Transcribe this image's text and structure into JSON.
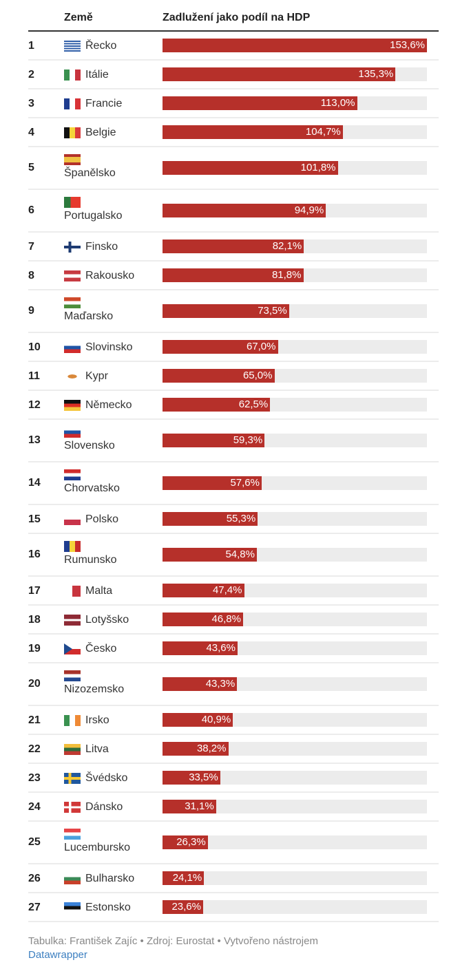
{
  "header": {
    "country_col": "Země",
    "debt_col": "Zadlužení jako podíl na HDP"
  },
  "chart_data": {
    "type": "bar",
    "orientation": "horizontal",
    "title": "Zadlužení jako podíl na HDP",
    "xlabel": "",
    "ylabel": "Země",
    "xlim": [
      0,
      153.6
    ],
    "bar_color": "#b6302a",
    "track_color": "#ececec",
    "categories": [
      "Řecko",
      "Itálie",
      "Francie",
      "Belgie",
      "Španělsko",
      "Portugalsko",
      "Finsko",
      "Rakousko",
      "Maďarsko",
      "Slovinsko",
      "Kypr",
      "Německo",
      "Slovensko",
      "Chorvatsko",
      "Polsko",
      "Rumunsko",
      "Malta",
      "Lotyšsko",
      "Česko",
      "Nizozemsko",
      "Irsko",
      "Litva",
      "Švédsko",
      "Dánsko",
      "Lucembursko",
      "Bulharsko",
      "Estonsko"
    ],
    "values": [
      153.6,
      135.3,
      113.0,
      104.7,
      101.8,
      94.9,
      82.1,
      81.8,
      73.5,
      67.0,
      65.0,
      62.5,
      59.3,
      57.6,
      55.3,
      54.8,
      47.4,
      46.8,
      43.6,
      43.3,
      40.9,
      38.2,
      33.5,
      31.1,
      26.3,
      24.1,
      23.6
    ]
  },
  "rows": [
    {
      "rank": "1",
      "country": "Řecko",
      "flag": "gr",
      "value": 153.6,
      "label": "153,6%",
      "wrap": false
    },
    {
      "rank": "2",
      "country": "Itálie",
      "flag": "it",
      "value": 135.3,
      "label": "135,3%",
      "wrap": false
    },
    {
      "rank": "3",
      "country": "Francie",
      "flag": "fr",
      "value": 113.0,
      "label": "113,0%",
      "wrap": false
    },
    {
      "rank": "4",
      "country": "Belgie",
      "flag": "be",
      "value": 104.7,
      "label": "104,7%",
      "wrap": false
    },
    {
      "rank": "5",
      "country": "Španělsko",
      "flag": "es",
      "value": 101.8,
      "label": "101,8%",
      "wrap": true
    },
    {
      "rank": "6",
      "country": "Portugalsko",
      "flag": "pt",
      "value": 94.9,
      "label": "94,9%",
      "wrap": true
    },
    {
      "rank": "7",
      "country": "Finsko",
      "flag": "fi",
      "value": 82.1,
      "label": "82,1%",
      "wrap": false
    },
    {
      "rank": "8",
      "country": "Rakousko",
      "flag": "at",
      "value": 81.8,
      "label": "81,8%",
      "wrap": false
    },
    {
      "rank": "9",
      "country": "Maďarsko",
      "flag": "hu",
      "value": 73.5,
      "label": "73,5%",
      "wrap": true
    },
    {
      "rank": "10",
      "country": "Slovinsko",
      "flag": "si",
      "value": 67.0,
      "label": "67,0%",
      "wrap": false
    },
    {
      "rank": "11",
      "country": "Kypr",
      "flag": "cy",
      "value": 65.0,
      "label": "65,0%",
      "wrap": false
    },
    {
      "rank": "12",
      "country": "Německo",
      "flag": "de",
      "value": 62.5,
      "label": "62,5%",
      "wrap": false
    },
    {
      "rank": "13",
      "country": "Slovensko",
      "flag": "sk",
      "value": 59.3,
      "label": "59,3%",
      "wrap": true
    },
    {
      "rank": "14",
      "country": "Chorvatsko",
      "flag": "hr",
      "value": 57.6,
      "label": "57,6%",
      "wrap": true
    },
    {
      "rank": "15",
      "country": "Polsko",
      "flag": "pl",
      "value": 55.3,
      "label": "55,3%",
      "wrap": false
    },
    {
      "rank": "16",
      "country": "Rumunsko",
      "flag": "ro",
      "value": 54.8,
      "label": "54,8%",
      "wrap": true
    },
    {
      "rank": "17",
      "country": "Malta",
      "flag": "mt",
      "value": 47.4,
      "label": "47,4%",
      "wrap": false
    },
    {
      "rank": "18",
      "country": "Lotyšsko",
      "flag": "lv",
      "value": 46.8,
      "label": "46,8%",
      "wrap": false
    },
    {
      "rank": "19",
      "country": "Česko",
      "flag": "cz",
      "value": 43.6,
      "label": "43,6%",
      "wrap": false
    },
    {
      "rank": "20",
      "country": "Nizozemsko",
      "flag": "nl",
      "value": 43.3,
      "label": "43,3%",
      "wrap": true
    },
    {
      "rank": "21",
      "country": "Irsko",
      "flag": "ie",
      "value": 40.9,
      "label": "40,9%",
      "wrap": false
    },
    {
      "rank": "22",
      "country": "Litva",
      "flag": "lt",
      "value": 38.2,
      "label": "38,2%",
      "wrap": false
    },
    {
      "rank": "23",
      "country": "Švédsko",
      "flag": "se",
      "value": 33.5,
      "label": "33,5%",
      "wrap": false
    },
    {
      "rank": "24",
      "country": "Dánsko",
      "flag": "dk",
      "value": 31.1,
      "label": "31,1%",
      "wrap": false
    },
    {
      "rank": "25",
      "country": "Lucembursko",
      "flag": "lu",
      "value": 26.3,
      "label": "26,3%",
      "wrap": true
    },
    {
      "rank": "26",
      "country": "Bulharsko",
      "flag": "bg",
      "value": 24.1,
      "label": "24,1%",
      "wrap": false
    },
    {
      "rank": "27",
      "country": "Estonsko",
      "flag": "ee",
      "value": 23.6,
      "label": "23,6%",
      "wrap": false
    }
  ],
  "footer": {
    "text": "Tabulka: František Zajíc • Zdroj: Eurostat • Vytvořeno nástrojem",
    "link": "Datawrapper"
  }
}
